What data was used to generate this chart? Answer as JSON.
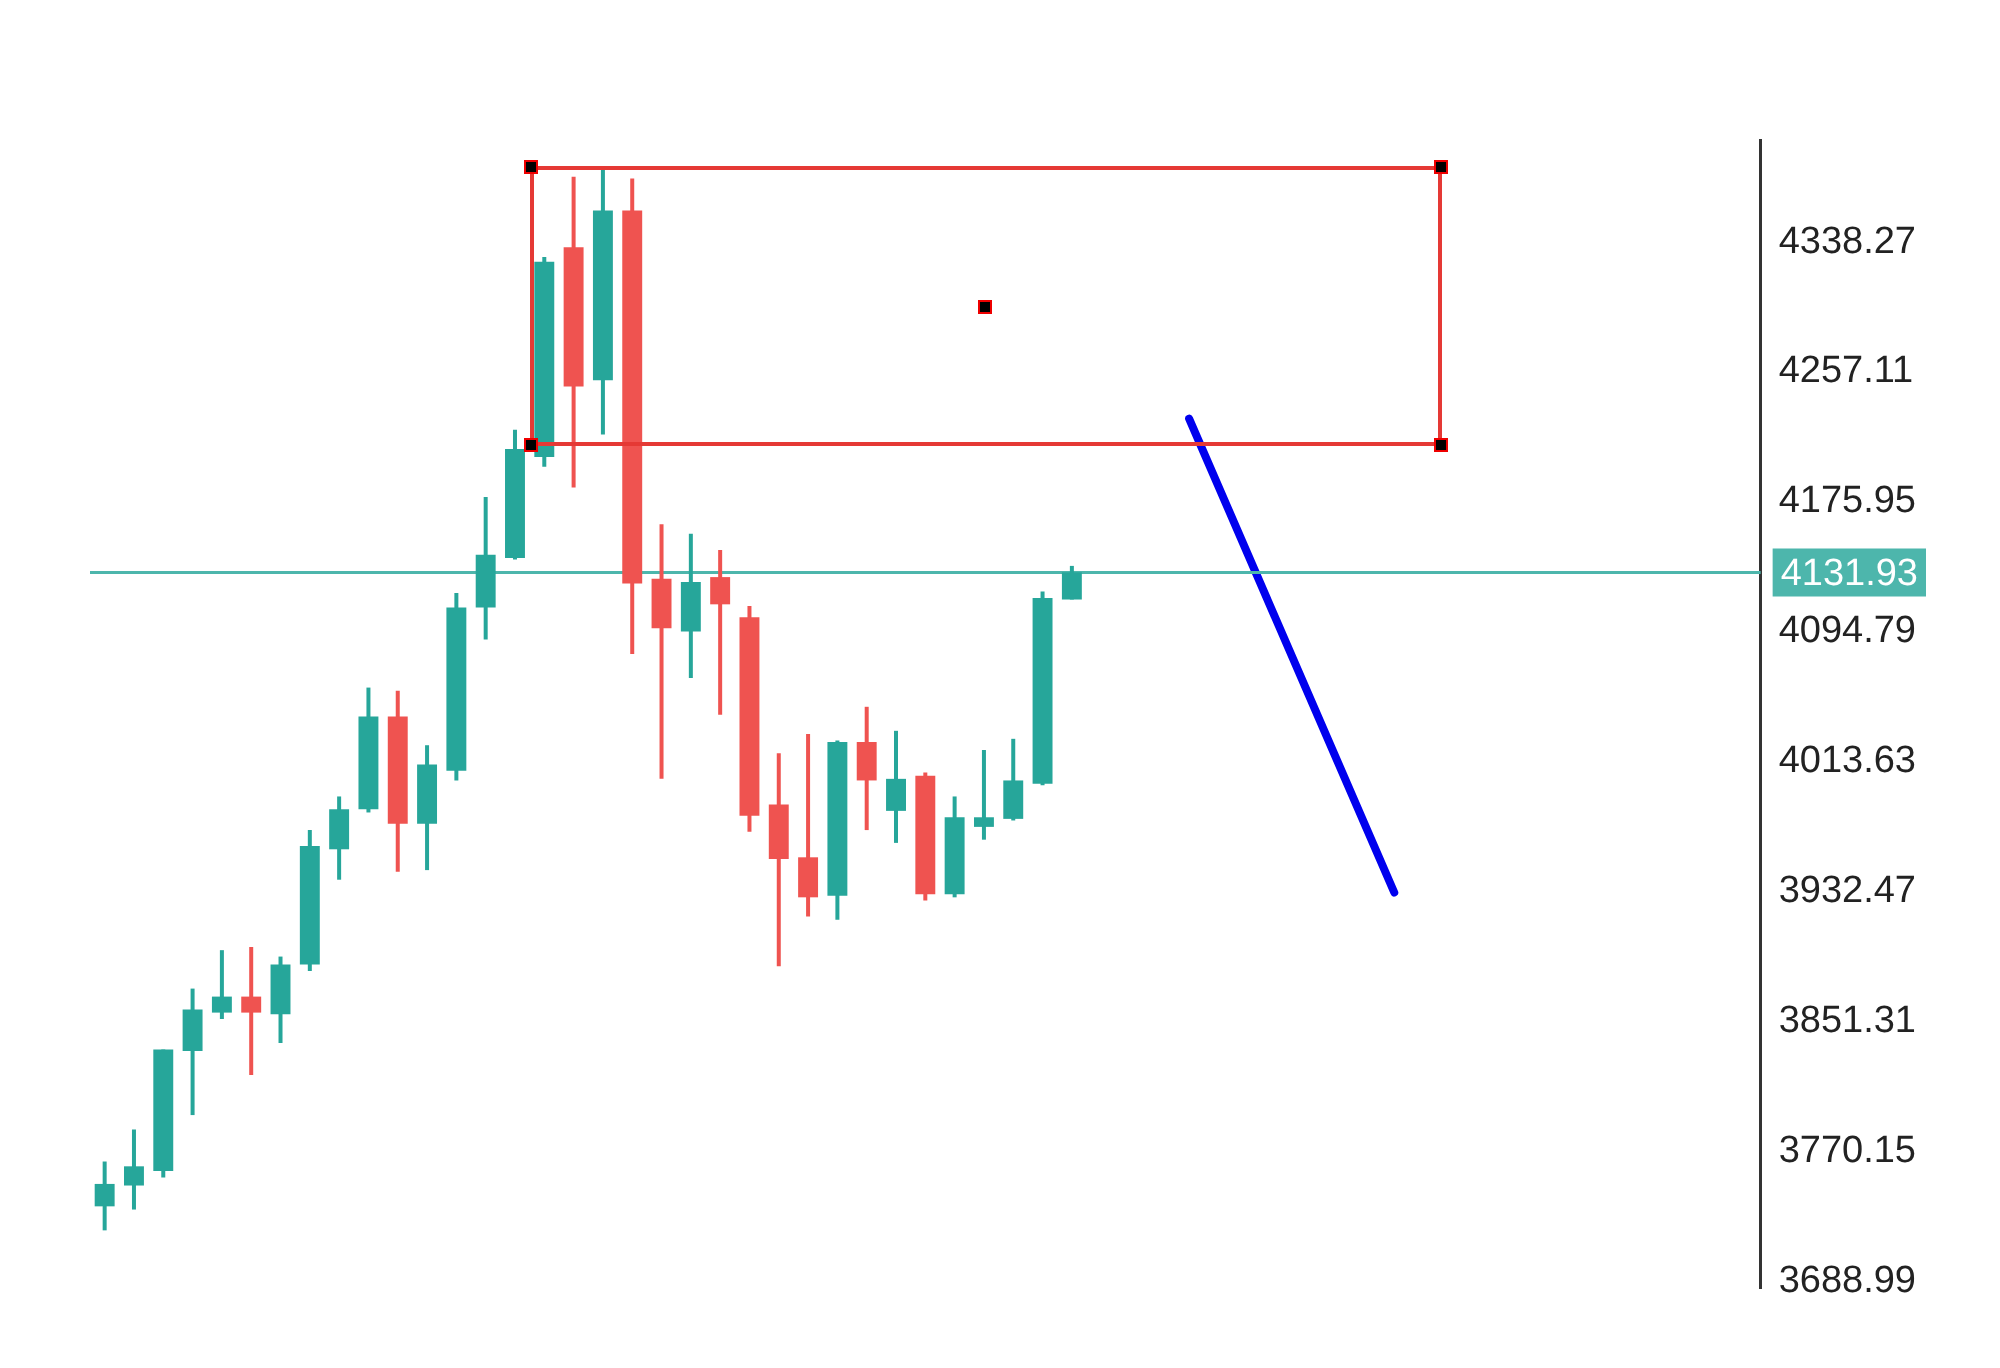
{
  "chart_data": {
    "type": "candlestick",
    "categories": [
      null,
      null,
      null,
      null,
      null,
      null,
      null,
      null,
      null,
      null,
      null,
      null,
      null,
      null,
      null,
      null,
      null,
      null,
      null,
      null,
      null,
      null,
      null,
      null,
      null,
      null,
      null,
      null,
      null,
      null,
      null,
      null,
      null,
      null,
      null,
      null,
      null,
      null,
      null,
      null,
      null,
      null,
      null,
      null,
      null,
      null,
      null,
      null,
      null,
      null,
      null,
      null,
      null,
      null,
      null,
      null,
      null
    ],
    "series": [
      {
        "ohlc": [
          [
            3736,
            3764,
            3721,
            3750
          ],
          [
            3749,
            3784,
            3734,
            3761
          ],
          [
            3758,
            3834,
            3754,
            3834
          ],
          [
            3833,
            3872,
            3793,
            3859
          ],
          [
            3857,
            3896,
            3853,
            3867
          ],
          [
            3867,
            3898,
            3818,
            3857
          ],
          [
            3856,
            3892,
            3838,
            3887
          ],
          [
            3887,
            3971,
            3883,
            3961
          ],
          [
            3959,
            3992,
            3940,
            3984
          ],
          [
            3984,
            4060,
            3982,
            4042
          ],
          [
            4042,
            4058,
            3945,
            3975
          ],
          [
            3975,
            4024,
            3946,
            4012
          ],
          [
            4008,
            4119,
            4002,
            4110
          ],
          [
            4110,
            4179,
            4090,
            4143
          ],
          [
            4141,
            4221,
            4140,
            4209
          ],
          [
            4204,
            4329,
            4198,
            4326
          ],
          [
            4335,
            4379,
            4185,
            4248
          ],
          [
            4252,
            4384,
            4218,
            4358
          ],
          [
            4358,
            4378,
            4081,
            4125
          ],
          [
            4128,
            4162,
            4003,
            4097
          ],
          [
            4095,
            4156,
            4066,
            4126
          ],
          [
            4129,
            4146,
            4043,
            4112
          ],
          [
            4104,
            4111,
            3970,
            3980
          ],
          [
            3987,
            4019,
            3886,
            3953
          ],
          [
            3954,
            4031,
            3917,
            3929
          ],
          [
            3930,
            4027,
            3915,
            4026
          ],
          [
            4026,
            4048,
            3971,
            4002
          ],
          [
            3983,
            4033,
            3963,
            4003
          ],
          [
            4005,
            4007,
            3927,
            3931
          ],
          [
            3931,
            3992,
            3929,
            3979
          ],
          [
            3973,
            4021,
            3965,
            3979
          ],
          [
            3978,
            4028,
            3977,
            4002
          ],
          [
            4000,
            4120,
            3999,
            4116
          ],
          [
            4115,
            4136,
            4115,
            4132
          ],
          null,
          null,
          null,
          null,
          null,
          null,
          null,
          null,
          null,
          null,
          null,
          null,
          null,
          null,
          null,
          null,
          null,
          null,
          null,
          null,
          null,
          null,
          null
        ],
        "colors": [
          "#26a69a",
          "#26a69a",
          "#26a69a",
          "#26a69a",
          "#26a69a",
          "#ef5350",
          "#26a69a",
          "#26a69a",
          "#26a69a",
          "#26a69a",
          "#ef5350",
          "#26a69a",
          "#26a69a",
          "#26a69a",
          "#26a69a",
          "#26a69a",
          "#ef5350",
          "#26a69a",
          "#ef5350",
          "#ef5350",
          "#26a69a",
          "#ef5350",
          "#ef5350",
          "#ef5350",
          "#ef5350",
          "#26a69a",
          "#ef5350",
          "#26a69a",
          "#ef5350",
          "#26a69a",
          "#26a69a",
          "#26a69a",
          "#26a69a",
          "#26a69a",
          null,
          null,
          null,
          null,
          null,
          null,
          null,
          null,
          null,
          null,
          null,
          null,
          null,
          null,
          null,
          null,
          null,
          null,
          null,
          null,
          null,
          null,
          null
        ]
      },
      {
        "type": "line",
        "color": "#0000ee",
        "values": [
          null,
          null,
          null,
          null,
          null,
          null,
          null,
          null,
          null,
          null,
          null,
          null,
          null,
          null,
          null,
          null,
          null,
          null,
          null,
          null,
          null,
          null,
          null,
          null,
          null,
          null,
          null,
          null,
          null,
          null,
          null,
          null,
          null,
          null,
          null,
          null,
          null,
          4228,
          null,
          null,
          null,
          null,
          null,
          null,
          3932,
          null,
          null,
          null,
          null,
          null,
          null,
          null,
          null,
          null,
          null,
          null,
          null
        ]
      }
    ],
    "ylim": [
      3685,
      4402
    ],
    "yticks": [
      3688.99,
      3770.15,
      3851.31,
      3932.47,
      4013.63,
      4094.79,
      4175.95,
      4257.11,
      4338.27
    ],
    "ref_lines": [
      {
        "axis": "y",
        "value": 4131.93,
        "label": "4131.93",
        "color": "#4db6ac"
      }
    ],
    "grid": false,
    "legend": false,
    "tick_labels": "y",
    "marker": "none",
    "line_style": "solid"
  }
}
